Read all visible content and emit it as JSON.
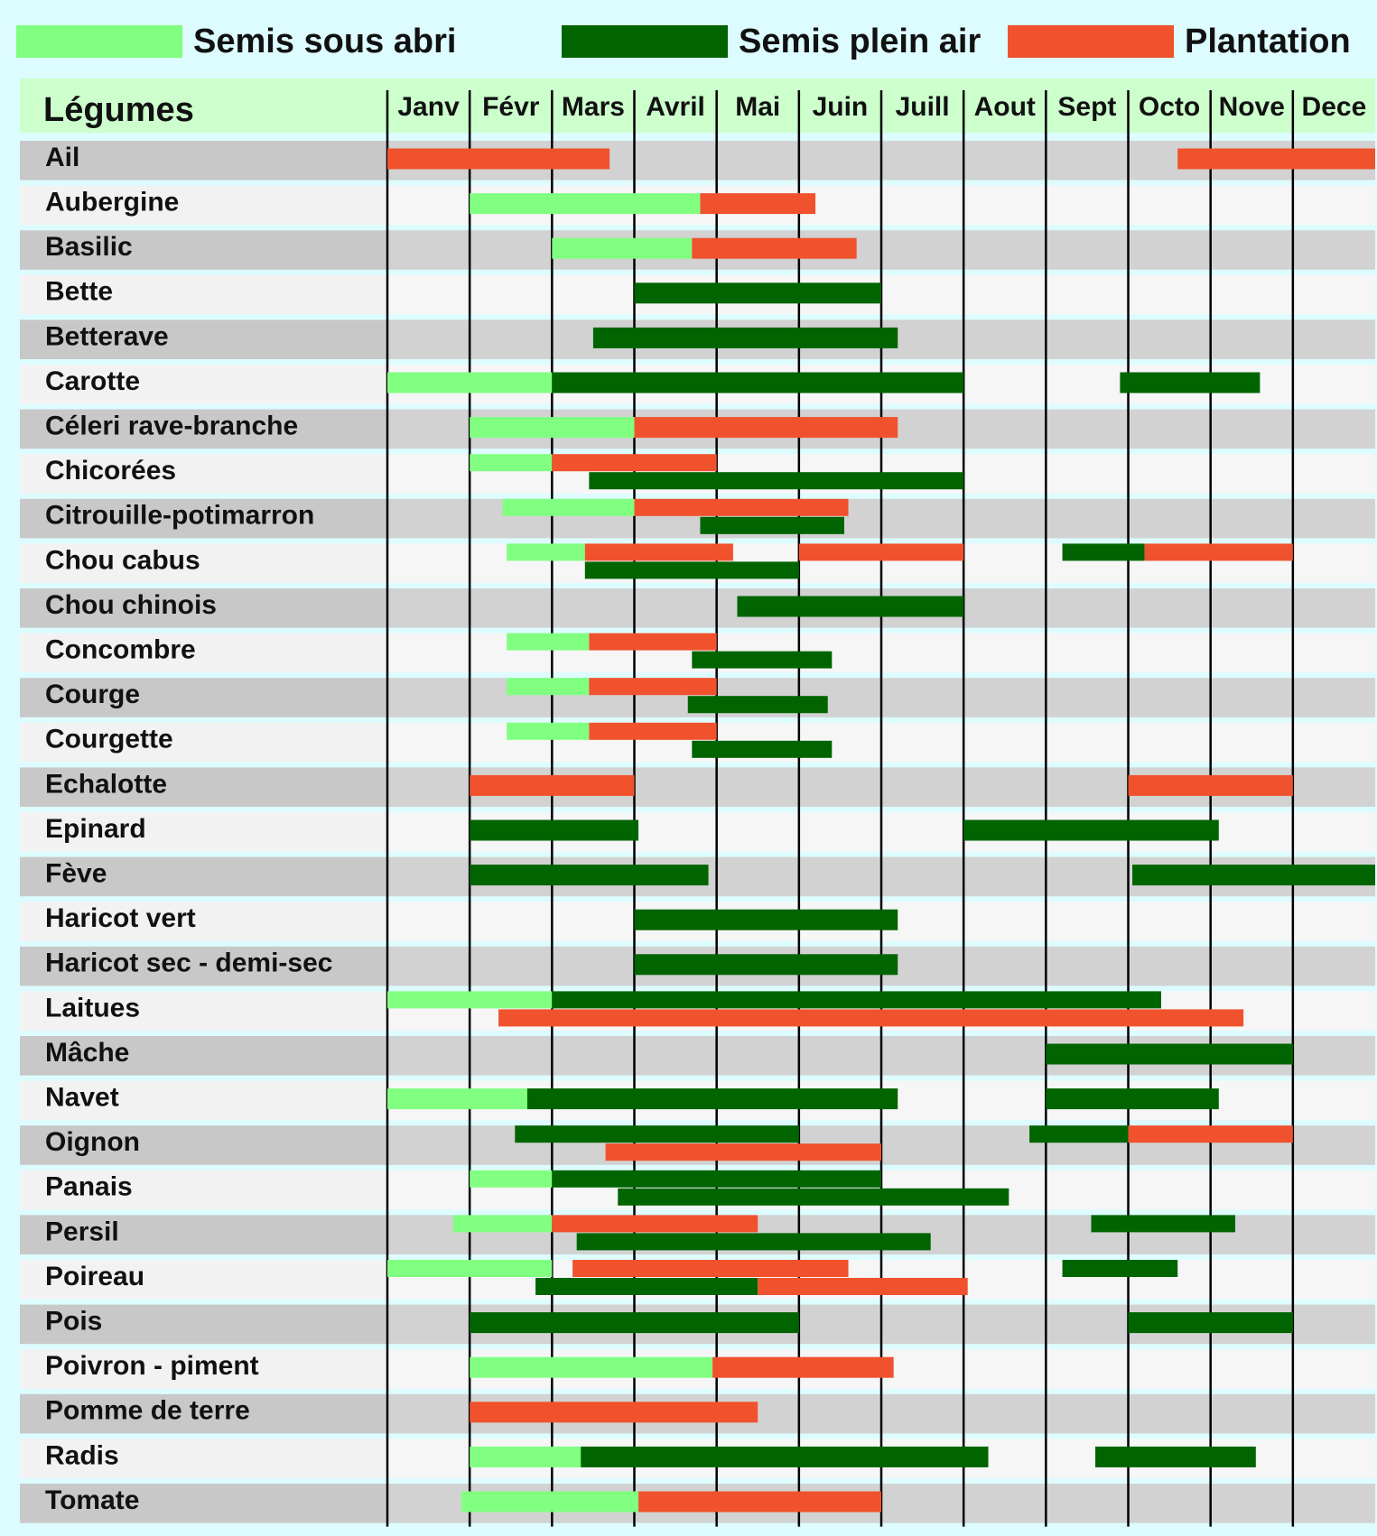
{
  "chart_data": {
    "type": "gantt",
    "category_label": "Légumes",
    "months": [
      "Janv",
      "Févr",
      "Mars",
      "Avril",
      "Mai",
      "Juin",
      "Juill",
      "Aout",
      "Sept",
      "Octo",
      "Nove",
      "Dece"
    ],
    "xlim": [
      0,
      12
    ],
    "categories": [
      "Ail",
      "Aubergine",
      "Basilic",
      "Bette",
      "Betterave",
      "Carotte",
      "Céleri rave-branche",
      "Chicorées",
      "Citrouille-potimarron",
      "Chou cabus",
      "Chou chinois",
      "Concombre",
      "Courge",
      "Courgette",
      "Echalotte",
      "Epinard",
      "Fève",
      "Haricot vert",
      "Haricot sec - demi-sec",
      "Laitues",
      "Mâche",
      "Navet",
      "Oignon",
      "Panais",
      "Persil",
      "Poireau",
      "Pois",
      "Poivron - piment",
      "Pomme de terre",
      "Radis",
      "Tomate"
    ],
    "series": [
      {
        "name": "Semis sous abri",
        "color": "#80ff80",
        "values": [
          [],
          [
            [
              1,
              3.8
            ]
          ],
          [
            [
              2,
              3.7
            ]
          ],
          [],
          [],
          [
            [
              0,
              2
            ]
          ],
          [
            [
              1,
              3
            ]
          ],
          [
            [
              1,
              2
            ]
          ],
          [
            [
              1.4,
              3
            ]
          ],
          [
            [
              1.45,
              2.4
            ]
          ],
          [],
          [
            [
              1.45,
              2.45
            ]
          ],
          [
            [
              1.45,
              2.45
            ]
          ],
          [
            [
              1.45,
              2.45
            ]
          ],
          [],
          [],
          [],
          [],
          [],
          [
            [
              0,
              2
            ]
          ],
          [],
          [
            [
              0,
              1.7
            ]
          ],
          [],
          [
            [
              1,
              2
            ]
          ],
          [
            [
              0.8,
              2
            ]
          ],
          [
            [
              0,
              2
            ]
          ],
          [],
          [
            [
              1,
              3.95
            ]
          ],
          [],
          [
            [
              1,
              2.35
            ]
          ],
          [
            [
              0.9,
              3.05
            ]
          ]
        ]
      },
      {
        "name": "Semis plein air",
        "color": "#006400",
        "values": [
          [],
          [],
          [],
          [
            [
              3,
              6
            ]
          ],
          [
            [
              2.5,
              6.2
            ]
          ],
          [
            [
              2,
              7
            ],
            [
              8.9,
              10.6
            ]
          ],
          [],
          [
            [
              2.45,
              7
            ]
          ],
          [
            [
              3.8,
              5.55
            ]
          ],
          [
            [
              2.4,
              5
            ],
            [
              8.2,
              9.2
            ]
          ],
          [
            [
              4.25,
              7
            ]
          ],
          [
            [
              3.7,
              5.4
            ]
          ],
          [
            [
              3.65,
              5.35
            ]
          ],
          [
            [
              3.7,
              5.4
            ]
          ],
          [],
          [
            [
              1,
              3.05
            ],
            [
              7,
              10.1
            ]
          ],
          [
            [
              1,
              3.9
            ],
            [
              9.05,
              12
            ]
          ],
          [
            [
              3,
              6.2
            ]
          ],
          [
            [
              3,
              6.2
            ]
          ],
          [
            [
              2,
              9.4
            ]
          ],
          [
            [
              8,
              11
            ]
          ],
          [
            [
              1.7,
              6.2
            ],
            [
              8,
              10.1
            ]
          ],
          [
            [
              1.55,
              5
            ],
            [
              7.8,
              9
            ]
          ],
          [
            [
              2,
              6
            ],
            [
              2.8,
              7.55
            ]
          ],
          [
            [
              2.3,
              6.6
            ],
            [
              8.55,
              10.3
            ]
          ],
          [
            [
              1.8,
              4.5
            ],
            [
              8.2,
              9.6
            ]
          ],
          [
            [
              1,
              5
            ],
            [
              9,
              11
            ]
          ],
          [],
          [],
          [
            [
              2.35,
              7.3
            ],
            [
              8.6,
              10.55
            ]
          ],
          []
        ]
      },
      {
        "name": "Plantation",
        "color": "#f0522d",
        "values": [
          [
            [
              0,
              2.7
            ],
            [
              9.6,
              12
            ]
          ],
          [
            [
              3.8,
              5.2
            ]
          ],
          [
            [
              3.7,
              5.7
            ]
          ],
          [],
          [],
          [],
          [
            [
              3,
              6.2
            ]
          ],
          [
            [
              2,
              4
            ]
          ],
          [
            [
              3,
              5.6
            ]
          ],
          [
            [
              2.4,
              4.2
            ],
            [
              5,
              7
            ],
            [
              9.2,
              11
            ]
          ],
          [],
          [
            [
              2.45,
              4
            ]
          ],
          [
            [
              2.45,
              4
            ]
          ],
          [
            [
              2.45,
              4
            ]
          ],
          [
            [
              1,
              3
            ],
            [
              9,
              11
            ]
          ],
          [],
          [],
          [],
          [],
          [
            [
              1.35,
              10.4
            ]
          ],
          [],
          [],
          [
            [
              2.65,
              6
            ],
            [
              9,
              11
            ]
          ],
          [],
          [
            [
              2,
              4.5
            ]
          ],
          [
            [
              2.25,
              5.6
            ],
            [
              4.5,
              7.05
            ]
          ],
          [],
          [
            [
              3.95,
              6.15
            ]
          ],
          [
            [
              1,
              4.5
            ]
          ],
          [],
          [
            [
              3.05,
              6
            ]
          ]
        ]
      }
    ]
  }
}
